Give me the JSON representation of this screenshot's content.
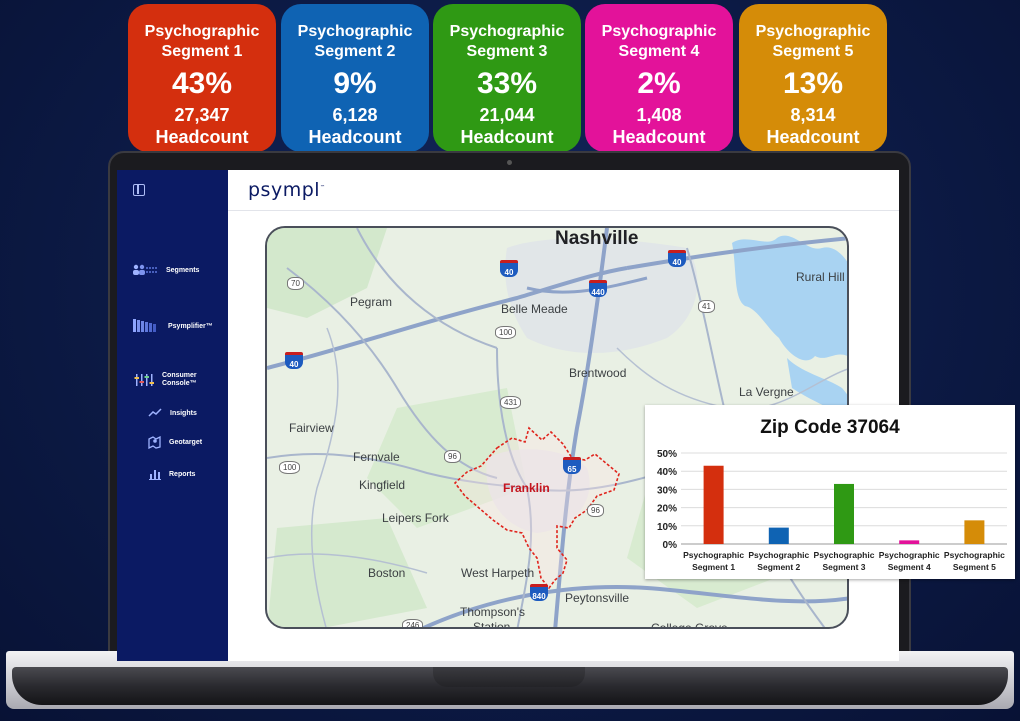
{
  "segments": [
    {
      "name": "Psychographic Segment 1",
      "percent": "43%",
      "count": "27,347",
      "unit": "Headcount",
      "color": "#d42f0e"
    },
    {
      "name": "Psychographic Segment 2",
      "percent": "9%",
      "count": "6,128",
      "unit": "Headcount",
      "color": "#0f63b3"
    },
    {
      "name": "Psychographic Segment 3",
      "percent": "33%",
      "count": "21,044",
      "unit": "Headcount",
      "color": "#2f9914"
    },
    {
      "name": "Psychographic Segment 4",
      "percent": "2%",
      "count": "1,408",
      "unit": "Headcount",
      "color": "#e3129a"
    },
    {
      "name": "Psychographic Segment 5",
      "percent": "13%",
      "count": "8,314",
      "unit": "Headcount",
      "color": "#d58c08"
    }
  ],
  "app": {
    "logo": "psympl",
    "logo_mark": "™"
  },
  "sidebar": {
    "items": [
      {
        "label": "Segments",
        "icon": "people-icon"
      },
      {
        "label": "Psymplifier™",
        "icon": "waves-icon"
      },
      {
        "label": "Consumer Console™",
        "icon": "sliders-icon"
      },
      {
        "label": "Insights",
        "icon": "trend-icon"
      },
      {
        "label": "Geotarget",
        "icon": "map-pin-icon"
      },
      {
        "label": "Reports",
        "icon": "bar-chart-icon"
      }
    ]
  },
  "map": {
    "places": {
      "nashville": "Nashville",
      "pegram": "Pegram",
      "belle_meade": "Belle Meade",
      "rural_hill": "Rural Hill",
      "brentwood": "Brentwood",
      "la_vergne": "La Vergne",
      "fairview": "Fairview",
      "fernvale": "Fernvale",
      "kingfield": "Kingfield",
      "franklin": "Franklin",
      "leipers_fork": "Leipers Fork",
      "boston": "Boston",
      "west_harpeth": "West Harpeth",
      "peytonsville": "Peytonsville",
      "thompsons_station": "Thompson's",
      "station": "Station",
      "college_grove": "College Grove"
    },
    "routes": {
      "r70": "70",
      "r100a": "100",
      "r100b": "100",
      "r431": "431",
      "r96a": "96",
      "r96b": "96",
      "r41": "41",
      "r246": "246",
      "i40a": "40",
      "i40b": "40",
      "i40c": "40",
      "i440": "440",
      "i65": "65",
      "i840": "840"
    }
  },
  "chart_data": {
    "type": "bar",
    "title": "Zip Code 37064",
    "categories": [
      "Psychographic Segment 1",
      "Psychographic Segment 2",
      "Psychographic Segment 3",
      "Psychographic Segment 4",
      "Psychographic Segment 5"
    ],
    "values": [
      43,
      9,
      33,
      2,
      13
    ],
    "colors": [
      "#d42f0e",
      "#0f63b3",
      "#2f9914",
      "#e3129a",
      "#d58c08"
    ],
    "yticks": [
      "0%",
      "10%",
      "20%",
      "30%",
      "40%",
      "50%"
    ],
    "ylim": [
      0,
      50
    ],
    "grid": true,
    "xlabel": "",
    "ylabel": ""
  }
}
